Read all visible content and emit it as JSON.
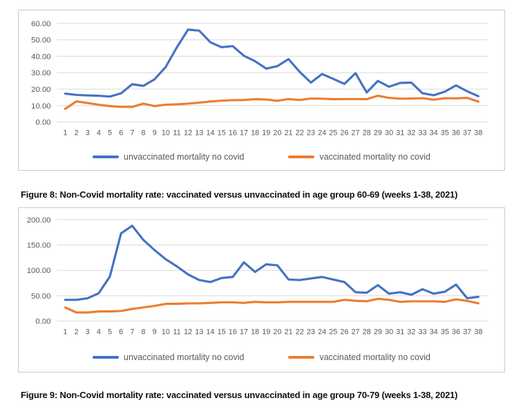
{
  "colors": {
    "unvaccinated_line": "#4472C4",
    "vaccinated_line": "#ED7D31",
    "grid": "#D9D9D9",
    "axis_text": "#595959",
    "legend_text": "#595959",
    "box_border": "#C9C9C9",
    "caption_text": "#111111"
  },
  "chart_data": [
    {
      "type": "line",
      "caption": "Figure 8: Non-Covid mortality rate: vaccinated versus unvaccinated in age group 60-69 (weeks 1-38, 2021)",
      "xlabel": "",
      "ylabel": "",
      "ylim": [
        0,
        60
      ],
      "grid": true,
      "legend_position": "bottom",
      "ytick_values": [
        60,
        50,
        40,
        30,
        20,
        10,
        0
      ],
      "ytick_labels": [
        "60.00",
        "50.00",
        "40.00",
        "30.00",
        "20.00",
        "10.00",
        "0.00"
      ],
      "categories": [
        "1",
        "2",
        "3",
        "4",
        "5",
        "6",
        "7",
        "8",
        "9",
        "10",
        "11",
        "12",
        "13",
        "14",
        "15",
        "16",
        "17",
        "18",
        "19",
        "20",
        "21",
        "22",
        "23",
        "24",
        "25",
        "26",
        "27",
        "28",
        "29",
        "30",
        "31",
        "32",
        "33",
        "34",
        "35",
        "36",
        "37",
        "38"
      ],
      "series": [
        {
          "name": "unvaccinated mortality no covid",
          "color": "#4472C4",
          "values": [
            17.3,
            16.5,
            16.2,
            16.0,
            15.5,
            17.5,
            23.0,
            22.0,
            26.0,
            33.5,
            45.5,
            56.2,
            55.6,
            48.5,
            45.5,
            46.2,
            40.3,
            37.0,
            32.5,
            34.0,
            38.3,
            30.5,
            24.0,
            29.2,
            26.3,
            23.2,
            29.7,
            18.0,
            25.0,
            21.5,
            23.8,
            24.0,
            17.5,
            16.3,
            18.5,
            22.3,
            18.7,
            15.7
          ]
        },
        {
          "name": "vaccinated mortality no covid",
          "color": "#ED7D31",
          "values": [
            8.1,
            12.6,
            11.6,
            10.5,
            9.7,
            9.2,
            9.2,
            11.2,
            9.7,
            10.6,
            10.8,
            11.2,
            11.8,
            12.5,
            13.0,
            13.3,
            13.4,
            13.9,
            13.7,
            12.9,
            14.0,
            13.4,
            14.3,
            14.2,
            13.9,
            14.0,
            14.0,
            13.9,
            16.0,
            14.7,
            14.2,
            14.3,
            14.5,
            13.6,
            14.5,
            14.4,
            14.7,
            12.4
          ]
        }
      ]
    },
    {
      "type": "line",
      "caption": "Figure 9: Non-Covid mortality rate: vaccinated versus unvaccinated in age group 70-79 (weeks 1-38, 2021)",
      "xlabel": "",
      "ylabel": "",
      "ylim": [
        0,
        200
      ],
      "grid": true,
      "legend_position": "bottom",
      "ytick_values": [
        200,
        150,
        100,
        50,
        0
      ],
      "ytick_labels": [
        "200.00",
        "150.00",
        "100.00",
        "50.00",
        "0.00"
      ],
      "categories": [
        "1",
        "2",
        "3",
        "4",
        "5",
        "6",
        "7",
        "8",
        "9",
        "10",
        "11",
        "12",
        "13",
        "14",
        "15",
        "16",
        "17",
        "18",
        "19",
        "20",
        "21",
        "22",
        "23",
        "24",
        "25",
        "26",
        "27",
        "28",
        "29",
        "30",
        "31",
        "32",
        "33",
        "34",
        "35",
        "36",
        "37",
        "38"
      ],
      "series": [
        {
          "name": "unvaccinated mortality no covid",
          "color": "#4472C4",
          "values": [
            42,
            42,
            45,
            55,
            88,
            173,
            188,
            160,
            140,
            122,
            108,
            92,
            81,
            77,
            85,
            87,
            116,
            97,
            112,
            110,
            82,
            81,
            84,
            87,
            82,
            77,
            57,
            56,
            71,
            54,
            57,
            52,
            63,
            54,
            58,
            72,
            45,
            48
          ]
        },
        {
          "name": "vaccinated mortality no covid",
          "color": "#ED7D31",
          "values": [
            27,
            17,
            17,
            19,
            19,
            20,
            24,
            27,
            30,
            34,
            34,
            35,
            35,
            36,
            37,
            37,
            36,
            38,
            37,
            37,
            38,
            38,
            38,
            38,
            38,
            42,
            40,
            39,
            44,
            42,
            38,
            39,
            39,
            39,
            38,
            43,
            40,
            35
          ]
        }
      ]
    }
  ]
}
